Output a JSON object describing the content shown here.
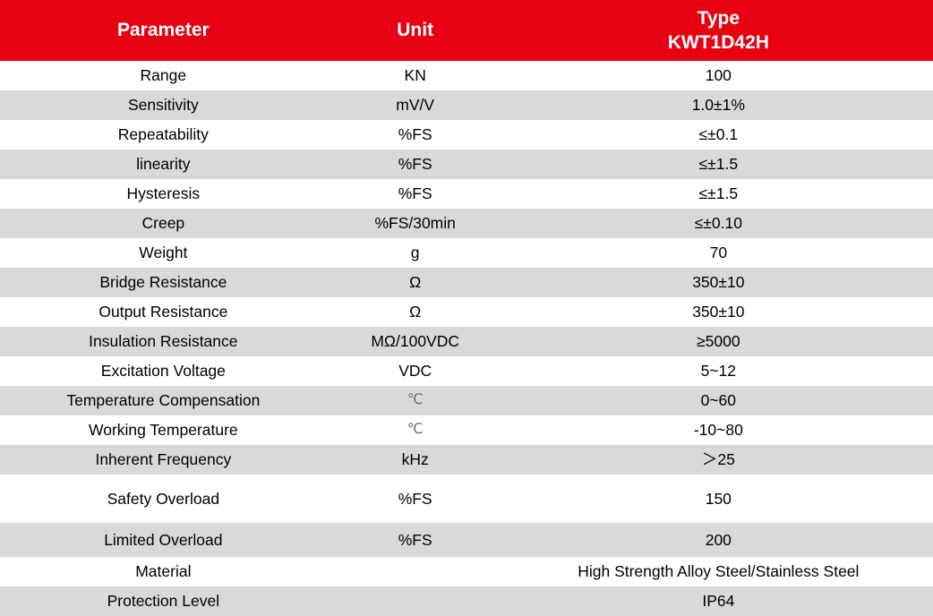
{
  "table": {
    "header": {
      "parameter": "Parameter",
      "unit": "Unit",
      "type_line1": "Type",
      "type_line2": "KWT1D42H"
    },
    "rows": [
      {
        "parameter": "Range",
        "unit": "KN",
        "value": "100"
      },
      {
        "parameter": "Sensitivity",
        "unit": "mV/V",
        "value": "1.0±1%"
      },
      {
        "parameter": "Repeatability",
        "unit": "%FS",
        "value": "≤±0.1"
      },
      {
        "parameter": "linearity",
        "unit": "%FS",
        "value": "≤±1.5"
      },
      {
        "parameter": "Hysteresis",
        "unit": "%FS",
        "value": "≤±1.5"
      },
      {
        "parameter": "Creep",
        "unit": "%FS/30min",
        "value": "≤±0.10"
      },
      {
        "parameter": "Weight",
        "unit": "g",
        "value": "70"
      },
      {
        "parameter": "Bridge Resistance",
        "unit": "Ω",
        "value": "350±10"
      },
      {
        "parameter": "Output Resistance",
        "unit": "Ω",
        "value": "350±10"
      },
      {
        "parameter": "Insulation Resistance",
        "unit": "MΩ/100VDC",
        "value": "≥5000"
      },
      {
        "parameter": "Excitation Voltage",
        "unit": "VDC",
        "value": "5~12"
      },
      {
        "parameter": "Temperature Compensation",
        "unit": "℃",
        "value": "0~60"
      },
      {
        "parameter": "Working Temperature",
        "unit": "℃",
        "value": "-10~80"
      },
      {
        "parameter": "Inherent Frequency",
        "unit": "kHz",
        "value": "＞25"
      },
      {
        "parameter": "Safety Overload",
        "unit": "%FS",
        "value": "150"
      },
      {
        "parameter": "Limited Overload",
        "unit": "%FS",
        "value": "200"
      },
      {
        "parameter": "Material",
        "unit": "",
        "value": "High Strength Alloy Steel/Stainless Steel"
      },
      {
        "parameter": "Protection Level",
        "unit": "",
        "value": "IP64"
      }
    ],
    "colors": {
      "header_bg": "#e60012",
      "header_text": "#ffffff",
      "row_bg": "#ffffff",
      "row_alt_bg": "#d9d9d9",
      "body_text": "#000000"
    }
  }
}
